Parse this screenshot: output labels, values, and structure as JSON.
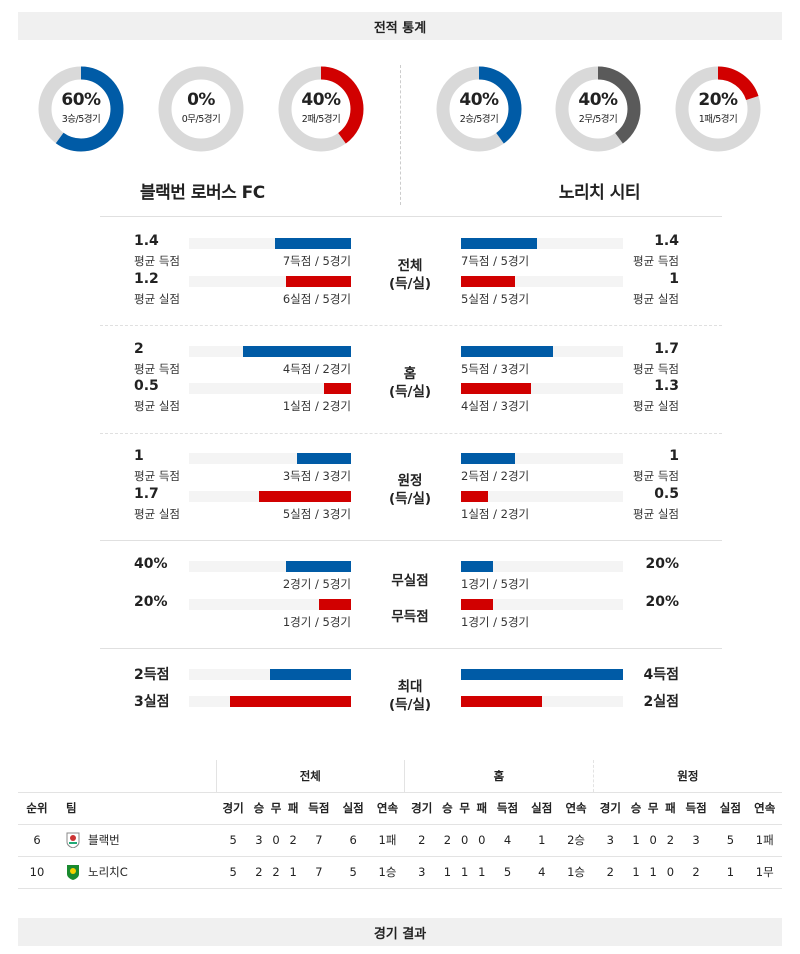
{
  "header": {
    "title": "전적 통계"
  },
  "footer": {
    "title": "경기 결과"
  },
  "colors": {
    "blue": "#005ba6",
    "red": "#d10000",
    "gray": "#5a5a5a",
    "track": "#d9d9d9"
  },
  "home_team": {
    "name": "블랙번 로버스 FC",
    "donuts": [
      {
        "pct": "60%",
        "sub": "3승/5경기",
        "value": 0.6,
        "color": "#005ba6"
      },
      {
        "pct": "0%",
        "sub": "0무/5경기",
        "value": 0,
        "color": "#5a5a5a"
      },
      {
        "pct": "40%",
        "sub": "2패/5경기",
        "value": 0.4,
        "color": "#d10000"
      }
    ]
  },
  "away_team": {
    "name": "노리치 시티",
    "donuts": [
      {
        "pct": "40%",
        "sub": "2승/5경기",
        "value": 0.4,
        "color": "#005ba6"
      },
      {
        "pct": "40%",
        "sub": "2무/5경기",
        "value": 0.4,
        "color": "#5a5a5a"
      },
      {
        "pct": "20%",
        "sub": "1패/5경기",
        "value": 0.2,
        "color": "#d10000"
      }
    ]
  },
  "sections": [
    {
      "center": [
        "전체",
        "(득/실)"
      ],
      "max": 3,
      "rows": [
        {
          "color": "blue",
          "left": {
            "value": "1.4",
            "label": "평균 득점",
            "sub": "7득점 / 5경기",
            "v": 1.4
          },
          "right": {
            "value": "1.4",
            "label": "평균 득점",
            "sub": "7득점 / 5경기",
            "v": 1.4
          }
        },
        {
          "color": "red",
          "left": {
            "value": "1.2",
            "label": "평균 실점",
            "sub": "6실점 / 5경기",
            "v": 1.2
          },
          "right": {
            "value": "1",
            "label": "평균 실점",
            "sub": "5실점 / 5경기",
            "v": 1
          }
        }
      ]
    },
    {
      "center": [
        "홈",
        "(득/실)"
      ],
      "max": 3,
      "rows": [
        {
          "color": "blue",
          "left": {
            "value": "2",
            "label": "평균 득점",
            "sub": "4득점 / 2경기",
            "v": 2
          },
          "right": {
            "value": "1.7",
            "label": "평균 득점",
            "sub": "5득점 / 3경기",
            "v": 1.7
          }
        },
        {
          "color": "red",
          "left": {
            "value": "0.5",
            "label": "평균 실점",
            "sub": "1실점 / 2경기",
            "v": 0.5
          },
          "right": {
            "value": "1.3",
            "label": "평균 실점",
            "sub": "4실점 / 3경기",
            "v": 1.3
          }
        }
      ]
    },
    {
      "center": [
        "원정",
        "(득/실)"
      ],
      "max": 3,
      "rows": [
        {
          "color": "blue",
          "left": {
            "value": "1",
            "label": "평균 득점",
            "sub": "3득점 / 3경기",
            "v": 1
          },
          "right": {
            "value": "1",
            "label": "평균 득점",
            "sub": "2득점 / 2경기",
            "v": 1
          }
        },
        {
          "color": "red",
          "left": {
            "value": "1.7",
            "label": "평균 실점",
            "sub": "5실점 / 3경기",
            "v": 1.7
          },
          "right": {
            "value": "0.5",
            "label": "평균 실점",
            "sub": "1실점 / 2경기",
            "v": 0.5
          }
        }
      ]
    },
    {
      "center": [
        "무실점",
        "무득점"
      ],
      "max": 100,
      "split": true,
      "rows": [
        {
          "color": "blue",
          "left": {
            "value": "40%",
            "sub": "2경기 / 5경기",
            "v": 40
          },
          "right": {
            "value": "20%",
            "sub": "1경기 / 5경기",
            "v": 20
          }
        },
        {
          "color": "red",
          "left": {
            "value": "20%",
            "sub": "1경기 / 5경기",
            "v": 20
          },
          "right": {
            "value": "20%",
            "sub": "1경기 / 5경기",
            "v": 20
          }
        }
      ]
    },
    {
      "center": [
        "최대",
        "(득/실)"
      ],
      "max": 4,
      "rows": [
        {
          "color": "blue",
          "left": {
            "value": "2득점",
            "v": 2
          },
          "right": {
            "value": "4득점",
            "v": 4
          }
        },
        {
          "color": "red",
          "left": {
            "value": "3실점",
            "v": 3
          },
          "right": {
            "value": "2실점",
            "v": 2
          }
        }
      ]
    }
  ],
  "table": {
    "groups": [
      "전체",
      "홈",
      "원정"
    ],
    "headers": [
      "순위",
      "팀",
      "경기",
      "승",
      "무",
      "패",
      "득점",
      "실점",
      "연속",
      "경기",
      "승",
      "무",
      "패",
      "득점",
      "실점",
      "연속",
      "경기",
      "승",
      "무",
      "패",
      "득점",
      "실점",
      "연속"
    ],
    "rows": [
      [
        "6",
        "블랙번",
        "5",
        "3",
        "0",
        "2",
        "7",
        "6",
        "1패",
        "2",
        "2",
        "0",
        "0",
        "4",
        "1",
        "2승",
        "3",
        "1",
        "0",
        "2",
        "3",
        "5",
        "1패"
      ],
      [
        "10",
        "노리치C",
        "5",
        "2",
        "2",
        "1",
        "7",
        "5",
        "1승",
        "3",
        "1",
        "1",
        "1",
        "5",
        "4",
        "1승",
        "2",
        "1",
        "1",
        "0",
        "2",
        "1",
        "1무"
      ]
    ]
  }
}
